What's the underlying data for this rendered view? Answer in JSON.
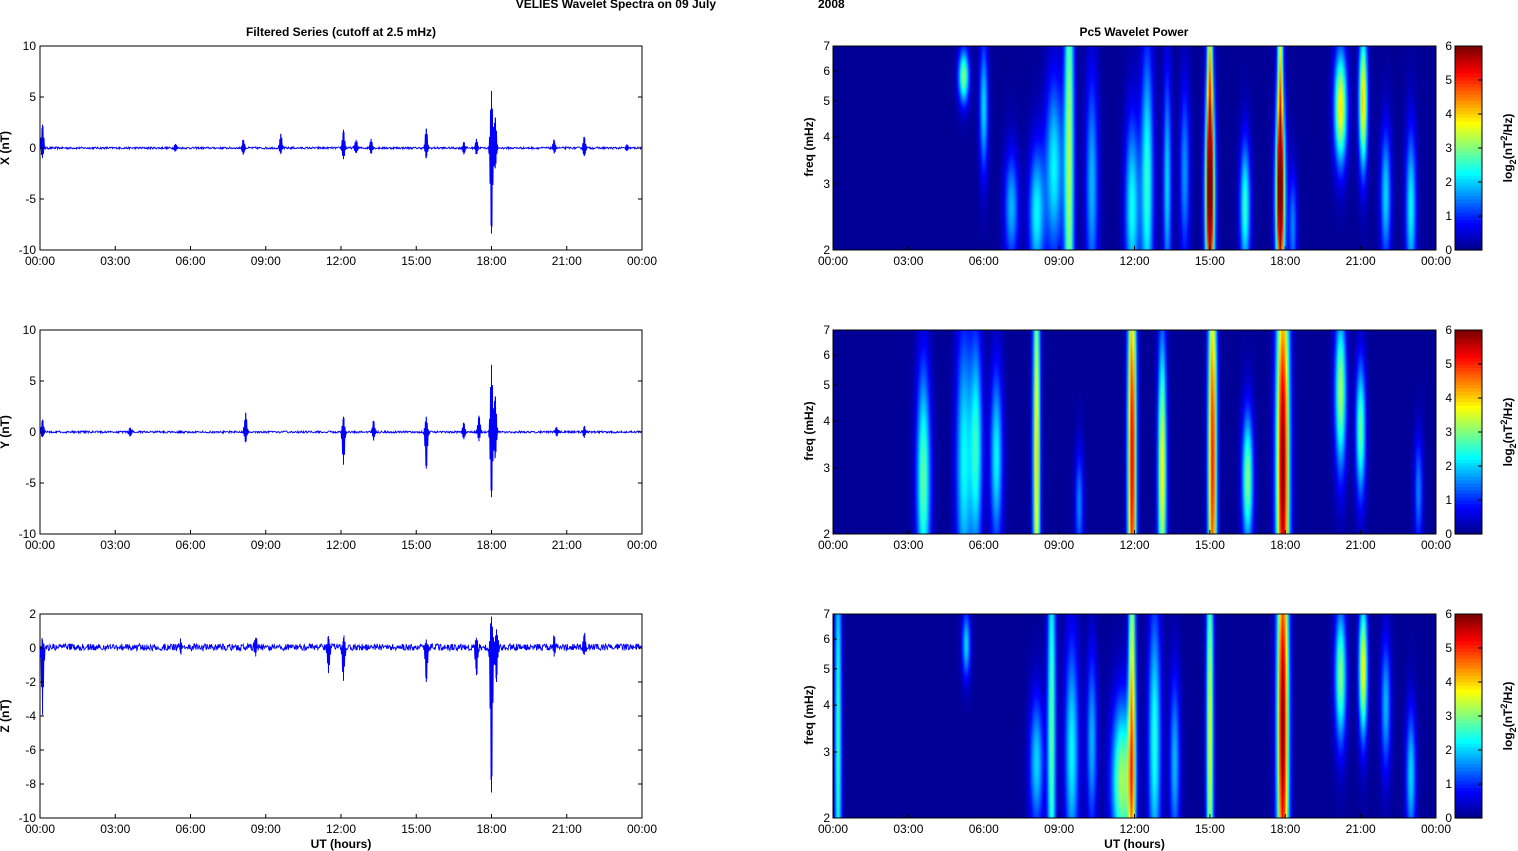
{
  "figure_title_left": "VELIES Wavelet Spectra on 09 July",
  "figure_title_year": "2008",
  "left_column_title": "Filtered Series (cutoff at 2.5 mHz)",
  "right_column_title": "Pc5 Wavelet Power",
  "x_axis_label": "UT (hours)",
  "x_ticks": [
    "00:00",
    "03:00",
    "06:00",
    "09:00",
    "12:00",
    "15:00",
    "18:00",
    "21:00",
    "00:00"
  ],
  "colorbar_ticks": [
    "0",
    "1",
    "2",
    "3",
    "4",
    "5",
    "6"
  ],
  "colorbar_label_pre": "log",
  "colorbar_label_sub": "2",
  "colorbar_label_mid": "(nT",
  "colorbar_label_sup": "2",
  "colorbar_label_post": "/Hz)",
  "freq_label": "freq (mHz)",
  "freq_ticks": [
    "2",
    "3",
    "4",
    "5",
    "6",
    "7"
  ],
  "colormap": [
    "#00008f",
    "#0000ff",
    "#0080ff",
    "#00ffff",
    "#80ff80",
    "#ffff00",
    "#ff8000",
    "#ff0000",
    "#800000"
  ],
  "line_color": "#0000ff",
  "chart_data": [
    {
      "type": "line",
      "title": "Filtered Series (cutoff at 2.5 mHz)",
      "ylabel": "X (nT)",
      "xlabel": "",
      "xlim": [
        0,
        24
      ],
      "ylim": [
        -10,
        10
      ],
      "yticks": [
        "10",
        "5",
        "0",
        "-5",
        "-10"
      ],
      "baseline": 0,
      "noise_amp": 0.1,
      "spikes": [
        {
          "t": 0.1,
          "hi": 2.3,
          "lo": -0.9
        },
        {
          "t": 5.4,
          "hi": 0.4,
          "lo": -0.3
        },
        {
          "t": 8.1,
          "hi": 0.8,
          "lo": -0.6
        },
        {
          "t": 9.6,
          "hi": 1.4,
          "lo": -0.6
        },
        {
          "t": 12.1,
          "hi": 1.8,
          "lo": -1.1
        },
        {
          "t": 12.6,
          "hi": 0.8,
          "lo": -0.5
        },
        {
          "t": 13.2,
          "hi": 0.9,
          "lo": -0.5
        },
        {
          "t": 15.4,
          "hi": 1.9,
          "lo": -1.0
        },
        {
          "t": 16.9,
          "hi": 0.6,
          "lo": -0.6
        },
        {
          "t": 17.4,
          "hi": 0.9,
          "lo": -0.6
        },
        {
          "t": 18.0,
          "hi": 5.6,
          "lo": -8.4
        },
        {
          "t": 18.15,
          "hi": 3.0,
          "lo": -2.0
        },
        {
          "t": 20.5,
          "hi": 0.8,
          "lo": -0.5
        },
        {
          "t": 21.7,
          "hi": 1.1,
          "lo": -0.8
        },
        {
          "t": 23.4,
          "hi": 0.3,
          "lo": -0.3
        }
      ]
    },
    {
      "type": "heatmap",
      "title": "Pc5 Wavelet Power",
      "ylabel": "freq (mHz)",
      "xlabel": "",
      "xlim": [
        0,
        24
      ],
      "ylim": [
        2,
        7
      ],
      "yscale": "log",
      "clim": [
        0,
        6
      ],
      "blobs": [
        {
          "t": 5.2,
          "f": 5.8,
          "w": 0.15,
          "h": 0.12,
          "p": 3.0
        },
        {
          "t": 6.0,
          "f": 4.8,
          "w": 0.12,
          "h": 0.3,
          "p": 2.0
        },
        {
          "t": 7.1,
          "f": 2.6,
          "w": 0.2,
          "h": 0.25,
          "p": 1.8
        },
        {
          "t": 8.1,
          "f": 2.5,
          "w": 0.22,
          "h": 0.3,
          "p": 2.2
        },
        {
          "t": 8.8,
          "f": 3.3,
          "w": 0.25,
          "h": 0.4,
          "p": 2.2
        },
        {
          "t": 9.4,
          "f": 3.5,
          "w": 0.14,
          "h": 1.2,
          "p": 3.2
        },
        {
          "t": 10.3,
          "f": 3.0,
          "w": 0.18,
          "h": 0.5,
          "p": 1.8
        },
        {
          "t": 11.9,
          "f": 2.6,
          "w": 0.2,
          "h": 0.4,
          "p": 2.3
        },
        {
          "t": 12.5,
          "f": 3.0,
          "w": 0.18,
          "h": 0.6,
          "p": 2.5
        },
        {
          "t": 13.3,
          "f": 3.0,
          "w": 0.12,
          "h": 0.5,
          "p": 2.0
        },
        {
          "t": 14.0,
          "f": 3.2,
          "w": 0.14,
          "h": 0.4,
          "p": 1.6
        },
        {
          "t": 15.0,
          "f": 2.8,
          "w": 0.14,
          "h": 0.45,
          "p": 4.8
        },
        {
          "t": 15.0,
          "f": 5.0,
          "w": 0.08,
          "h": 1.0,
          "p": 3.5
        },
        {
          "t": 16.4,
          "f": 2.6,
          "w": 0.15,
          "h": 0.3,
          "p": 2.5
        },
        {
          "t": 17.8,
          "f": 2.8,
          "w": 0.14,
          "h": 0.4,
          "p": 4.8
        },
        {
          "t": 17.8,
          "f": 5.0,
          "w": 0.08,
          "h": 1.0,
          "p": 3.5
        },
        {
          "t": 18.3,
          "f": 2.3,
          "w": 0.12,
          "h": 0.25,
          "p": 1.5
        },
        {
          "t": 20.2,
          "f": 4.8,
          "w": 0.18,
          "h": 0.25,
          "p": 3.8
        },
        {
          "t": 21.1,
          "f": 5.0,
          "w": 0.12,
          "h": 0.3,
          "p": 4.0
        },
        {
          "t": 22.0,
          "f": 2.8,
          "w": 0.15,
          "h": 0.3,
          "p": 2.0
        },
        {
          "t": 23.0,
          "f": 2.6,
          "w": 0.15,
          "h": 0.35,
          "p": 2.2
        }
      ]
    },
    {
      "type": "line",
      "title": "",
      "ylabel": "Y (nT)",
      "xlabel": "",
      "xlim": [
        0,
        24
      ],
      "ylim": [
        -10,
        10
      ],
      "yticks": [
        "10",
        "5",
        "0",
        "-5",
        "-10"
      ],
      "baseline": 0,
      "noise_amp": 0.1,
      "spikes": [
        {
          "t": 0.1,
          "hi": 1.2,
          "lo": -0.5
        },
        {
          "t": 3.6,
          "hi": 0.4,
          "lo": -0.4
        },
        {
          "t": 8.2,
          "hi": 1.9,
          "lo": -1.0
        },
        {
          "t": 12.1,
          "hi": 1.5,
          "lo": -3.2
        },
        {
          "t": 13.3,
          "hi": 1.1,
          "lo": -0.8
        },
        {
          "t": 15.4,
          "hi": 1.5,
          "lo": -3.6
        },
        {
          "t": 16.9,
          "hi": 0.9,
          "lo": -0.7
        },
        {
          "t": 17.5,
          "hi": 1.6,
          "lo": -0.9
        },
        {
          "t": 18.0,
          "hi": 6.5,
          "lo": -6.4
        },
        {
          "t": 18.15,
          "hi": 3.5,
          "lo": -2.5
        },
        {
          "t": 20.6,
          "hi": 0.5,
          "lo": -0.4
        },
        {
          "t": 21.7,
          "hi": 0.6,
          "lo": -0.5
        }
      ]
    },
    {
      "type": "heatmap",
      "title": "",
      "ylabel": "freq (mHz)",
      "xlabel": "",
      "xlim": [
        0,
        24
      ],
      "ylim": [
        2,
        7
      ],
      "yscale": "log",
      "clim": [
        0,
        6
      ],
      "blobs": [
        {
          "t": 3.6,
          "f": 2.8,
          "w": 0.2,
          "h": 0.5,
          "p": 2.8
        },
        {
          "t": 5.2,
          "f": 3.1,
          "w": 0.22,
          "h": 0.6,
          "p": 2.2
        },
        {
          "t": 5.7,
          "f": 3.4,
          "w": 0.18,
          "h": 0.5,
          "p": 2.4
        },
        {
          "t": 6.5,
          "f": 3.2,
          "w": 0.18,
          "h": 0.4,
          "p": 2.2
        },
        {
          "t": 8.1,
          "f": 3.2,
          "w": 0.1,
          "h": 1.0,
          "p": 4.0
        },
        {
          "t": 9.8,
          "f": 2.4,
          "w": 0.12,
          "h": 0.25,
          "p": 1.5
        },
        {
          "t": 11.9,
          "f": 3.1,
          "w": 0.12,
          "h": 1.0,
          "p": 5.5
        },
        {
          "t": 13.1,
          "f": 2.9,
          "w": 0.12,
          "h": 0.6,
          "p": 3.8
        },
        {
          "t": 15.1,
          "f": 3.1,
          "w": 0.12,
          "h": 1.0,
          "p": 5.2
        },
        {
          "t": 16.5,
          "f": 2.8,
          "w": 0.16,
          "h": 0.3,
          "p": 3.0
        },
        {
          "t": 17.9,
          "f": 3.0,
          "w": 0.18,
          "h": 1.0,
          "p": 6.0
        },
        {
          "t": 20.2,
          "f": 4.8,
          "w": 0.16,
          "h": 0.35,
          "p": 3.2
        },
        {
          "t": 21.0,
          "f": 3.8,
          "w": 0.14,
          "h": 0.3,
          "p": 2.8
        },
        {
          "t": 23.3,
          "f": 2.6,
          "w": 0.12,
          "h": 0.25,
          "p": 1.5
        }
      ]
    },
    {
      "type": "line",
      "title": "",
      "ylabel": "Z (nT)",
      "xlabel": "UT (hours)",
      "xlim": [
        0,
        24
      ],
      "ylim": [
        -10,
        2
      ],
      "yticks": [
        "2",
        "0",
        "-2",
        "-4",
        "-6",
        "-8",
        "-10"
      ],
      "baseline": 0.05,
      "noise_amp": 0.2,
      "spikes": [
        {
          "t": 0.1,
          "hi": 0.5,
          "lo": -3.8
        },
        {
          "t": 5.6,
          "hi": 0.4,
          "lo": -0.3
        },
        {
          "t": 8.6,
          "hi": 0.6,
          "lo": -0.5
        },
        {
          "t": 11.5,
          "hi": 0.7,
          "lo": -1.4
        },
        {
          "t": 12.1,
          "hi": 0.6,
          "lo": -1.9
        },
        {
          "t": 15.4,
          "hi": 0.5,
          "lo": -2.0
        },
        {
          "t": 17.4,
          "hi": 0.5,
          "lo": -1.6
        },
        {
          "t": 18.0,
          "hi": 1.8,
          "lo": -8.5
        },
        {
          "t": 18.2,
          "hi": 1.1,
          "lo": -2.0
        },
        {
          "t": 20.5,
          "hi": 0.6,
          "lo": -0.5
        },
        {
          "t": 21.7,
          "hi": 0.8,
          "lo": -0.4
        }
      ]
    },
    {
      "type": "heatmap",
      "title": "",
      "ylabel": "freq (mHz)",
      "xlabel": "UT (hours)",
      "xlim": [
        0,
        24
      ],
      "ylim": [
        2,
        7
      ],
      "yscale": "log",
      "clim": [
        0,
        6
      ],
      "blobs": [
        {
          "t": 0.2,
          "f": 3.2,
          "w": 0.1,
          "h": 1.0,
          "p": 2.6
        },
        {
          "t": 5.3,
          "f": 5.8,
          "w": 0.12,
          "h": 0.15,
          "p": 2.0
        },
        {
          "t": 8.1,
          "f": 2.8,
          "w": 0.2,
          "h": 0.3,
          "p": 2.0
        },
        {
          "t": 8.7,
          "f": 3.4,
          "w": 0.12,
          "h": 1.0,
          "p": 2.8
        },
        {
          "t": 9.5,
          "f": 3.0,
          "w": 0.2,
          "h": 0.5,
          "p": 2.2
        },
        {
          "t": 10.3,
          "f": 3.2,
          "w": 0.15,
          "h": 0.4,
          "p": 1.8
        },
        {
          "t": 11.5,
          "f": 2.5,
          "w": 0.3,
          "h": 0.35,
          "p": 3.2
        },
        {
          "t": 11.9,
          "f": 3.5,
          "w": 0.1,
          "h": 1.0,
          "p": 4.0
        },
        {
          "t": 12.8,
          "f": 3.2,
          "w": 0.18,
          "h": 0.6,
          "p": 2.4
        },
        {
          "t": 13.6,
          "f": 2.8,
          "w": 0.15,
          "h": 0.4,
          "p": 1.8
        },
        {
          "t": 15.0,
          "f": 3.3,
          "w": 0.1,
          "h": 1.0,
          "p": 3.6
        },
        {
          "t": 17.9,
          "f": 3.5,
          "w": 0.16,
          "h": 1.0,
          "p": 6.0
        },
        {
          "t": 20.2,
          "f": 4.8,
          "w": 0.16,
          "h": 0.3,
          "p": 3.0
        },
        {
          "t": 21.1,
          "f": 5.0,
          "w": 0.12,
          "h": 0.3,
          "p": 3.8
        },
        {
          "t": 22.0,
          "f": 4.0,
          "w": 0.14,
          "h": 0.3,
          "p": 1.8
        },
        {
          "t": 23.0,
          "f": 2.6,
          "w": 0.14,
          "h": 0.3,
          "p": 2.0
        }
      ]
    }
  ]
}
